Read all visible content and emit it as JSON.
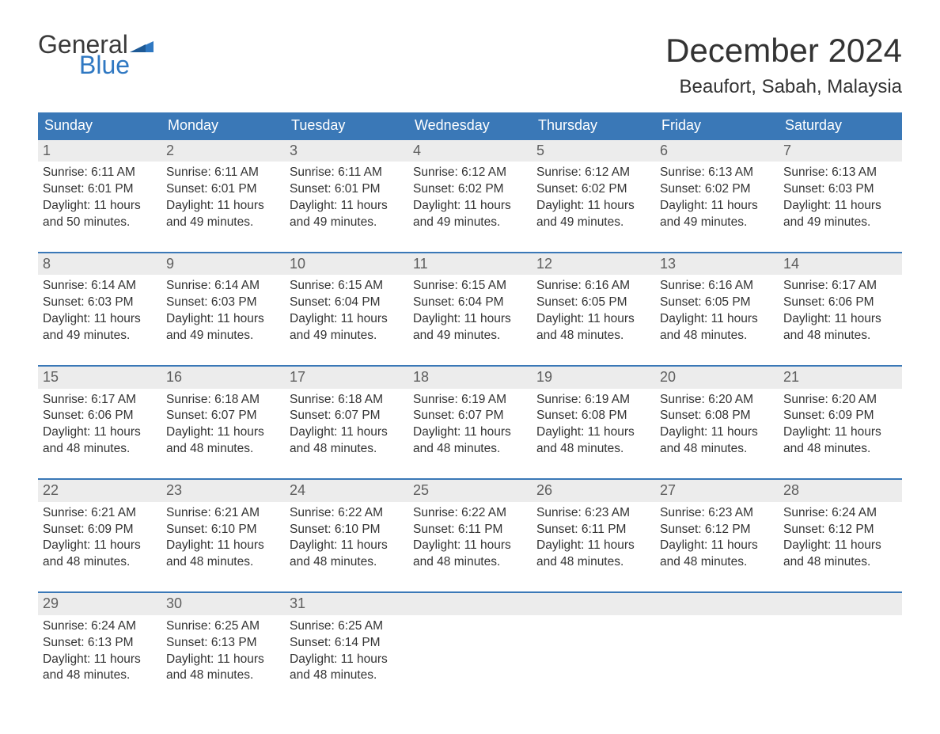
{
  "logo": {
    "text1": "General",
    "text2": "Blue",
    "flag_color": "#2f78c2"
  },
  "title": "December 2024",
  "location": "Beaufort, Sabah, Malaysia",
  "header_bg": "#3a78b7",
  "header_fg": "#ffffff",
  "daynum_bg": "#ececec",
  "daynum_fg": "#5e5e5e",
  "row_border": "#3a78b7",
  "weekdays": [
    "Sunday",
    "Monday",
    "Tuesday",
    "Wednesday",
    "Thursday",
    "Friday",
    "Saturday"
  ],
  "weeks": [
    [
      {
        "n": "1",
        "sunrise": "Sunrise: 6:11 AM",
        "sunset": "Sunset: 6:01 PM",
        "day1": "Daylight: 11 hours",
        "day2": "and 50 minutes."
      },
      {
        "n": "2",
        "sunrise": "Sunrise: 6:11 AM",
        "sunset": "Sunset: 6:01 PM",
        "day1": "Daylight: 11 hours",
        "day2": "and 49 minutes."
      },
      {
        "n": "3",
        "sunrise": "Sunrise: 6:11 AM",
        "sunset": "Sunset: 6:01 PM",
        "day1": "Daylight: 11 hours",
        "day2": "and 49 minutes."
      },
      {
        "n": "4",
        "sunrise": "Sunrise: 6:12 AM",
        "sunset": "Sunset: 6:02 PM",
        "day1": "Daylight: 11 hours",
        "day2": "and 49 minutes."
      },
      {
        "n": "5",
        "sunrise": "Sunrise: 6:12 AM",
        "sunset": "Sunset: 6:02 PM",
        "day1": "Daylight: 11 hours",
        "day2": "and 49 minutes."
      },
      {
        "n": "6",
        "sunrise": "Sunrise: 6:13 AM",
        "sunset": "Sunset: 6:02 PM",
        "day1": "Daylight: 11 hours",
        "day2": "and 49 minutes."
      },
      {
        "n": "7",
        "sunrise": "Sunrise: 6:13 AM",
        "sunset": "Sunset: 6:03 PM",
        "day1": "Daylight: 11 hours",
        "day2": "and 49 minutes."
      }
    ],
    [
      {
        "n": "8",
        "sunrise": "Sunrise: 6:14 AM",
        "sunset": "Sunset: 6:03 PM",
        "day1": "Daylight: 11 hours",
        "day2": "and 49 minutes."
      },
      {
        "n": "9",
        "sunrise": "Sunrise: 6:14 AM",
        "sunset": "Sunset: 6:03 PM",
        "day1": "Daylight: 11 hours",
        "day2": "and 49 minutes."
      },
      {
        "n": "10",
        "sunrise": "Sunrise: 6:15 AM",
        "sunset": "Sunset: 6:04 PM",
        "day1": "Daylight: 11 hours",
        "day2": "and 49 minutes."
      },
      {
        "n": "11",
        "sunrise": "Sunrise: 6:15 AM",
        "sunset": "Sunset: 6:04 PM",
        "day1": "Daylight: 11 hours",
        "day2": "and 49 minutes."
      },
      {
        "n": "12",
        "sunrise": "Sunrise: 6:16 AM",
        "sunset": "Sunset: 6:05 PM",
        "day1": "Daylight: 11 hours",
        "day2": "and 48 minutes."
      },
      {
        "n": "13",
        "sunrise": "Sunrise: 6:16 AM",
        "sunset": "Sunset: 6:05 PM",
        "day1": "Daylight: 11 hours",
        "day2": "and 48 minutes."
      },
      {
        "n": "14",
        "sunrise": "Sunrise: 6:17 AM",
        "sunset": "Sunset: 6:06 PM",
        "day1": "Daylight: 11 hours",
        "day2": "and 48 minutes."
      }
    ],
    [
      {
        "n": "15",
        "sunrise": "Sunrise: 6:17 AM",
        "sunset": "Sunset: 6:06 PM",
        "day1": "Daylight: 11 hours",
        "day2": "and 48 minutes."
      },
      {
        "n": "16",
        "sunrise": "Sunrise: 6:18 AM",
        "sunset": "Sunset: 6:07 PM",
        "day1": "Daylight: 11 hours",
        "day2": "and 48 minutes."
      },
      {
        "n": "17",
        "sunrise": "Sunrise: 6:18 AM",
        "sunset": "Sunset: 6:07 PM",
        "day1": "Daylight: 11 hours",
        "day2": "and 48 minutes."
      },
      {
        "n": "18",
        "sunrise": "Sunrise: 6:19 AM",
        "sunset": "Sunset: 6:07 PM",
        "day1": "Daylight: 11 hours",
        "day2": "and 48 minutes."
      },
      {
        "n": "19",
        "sunrise": "Sunrise: 6:19 AM",
        "sunset": "Sunset: 6:08 PM",
        "day1": "Daylight: 11 hours",
        "day2": "and 48 minutes."
      },
      {
        "n": "20",
        "sunrise": "Sunrise: 6:20 AM",
        "sunset": "Sunset: 6:08 PM",
        "day1": "Daylight: 11 hours",
        "day2": "and 48 minutes."
      },
      {
        "n": "21",
        "sunrise": "Sunrise: 6:20 AM",
        "sunset": "Sunset: 6:09 PM",
        "day1": "Daylight: 11 hours",
        "day2": "and 48 minutes."
      }
    ],
    [
      {
        "n": "22",
        "sunrise": "Sunrise: 6:21 AM",
        "sunset": "Sunset: 6:09 PM",
        "day1": "Daylight: 11 hours",
        "day2": "and 48 minutes."
      },
      {
        "n": "23",
        "sunrise": "Sunrise: 6:21 AM",
        "sunset": "Sunset: 6:10 PM",
        "day1": "Daylight: 11 hours",
        "day2": "and 48 minutes."
      },
      {
        "n": "24",
        "sunrise": "Sunrise: 6:22 AM",
        "sunset": "Sunset: 6:10 PM",
        "day1": "Daylight: 11 hours",
        "day2": "and 48 minutes."
      },
      {
        "n": "25",
        "sunrise": "Sunrise: 6:22 AM",
        "sunset": "Sunset: 6:11 PM",
        "day1": "Daylight: 11 hours",
        "day2": "and 48 minutes."
      },
      {
        "n": "26",
        "sunrise": "Sunrise: 6:23 AM",
        "sunset": "Sunset: 6:11 PM",
        "day1": "Daylight: 11 hours",
        "day2": "and 48 minutes."
      },
      {
        "n": "27",
        "sunrise": "Sunrise: 6:23 AM",
        "sunset": "Sunset: 6:12 PM",
        "day1": "Daylight: 11 hours",
        "day2": "and 48 minutes."
      },
      {
        "n": "28",
        "sunrise": "Sunrise: 6:24 AM",
        "sunset": "Sunset: 6:12 PM",
        "day1": "Daylight: 11 hours",
        "day2": "and 48 minutes."
      }
    ],
    [
      {
        "n": "29",
        "sunrise": "Sunrise: 6:24 AM",
        "sunset": "Sunset: 6:13 PM",
        "day1": "Daylight: 11 hours",
        "day2": "and 48 minutes."
      },
      {
        "n": "30",
        "sunrise": "Sunrise: 6:25 AM",
        "sunset": "Sunset: 6:13 PM",
        "day1": "Daylight: 11 hours",
        "day2": "and 48 minutes."
      },
      {
        "n": "31",
        "sunrise": "Sunrise: 6:25 AM",
        "sunset": "Sunset: 6:14 PM",
        "day1": "Daylight: 11 hours",
        "day2": "and 48 minutes."
      },
      null,
      null,
      null,
      null
    ]
  ]
}
